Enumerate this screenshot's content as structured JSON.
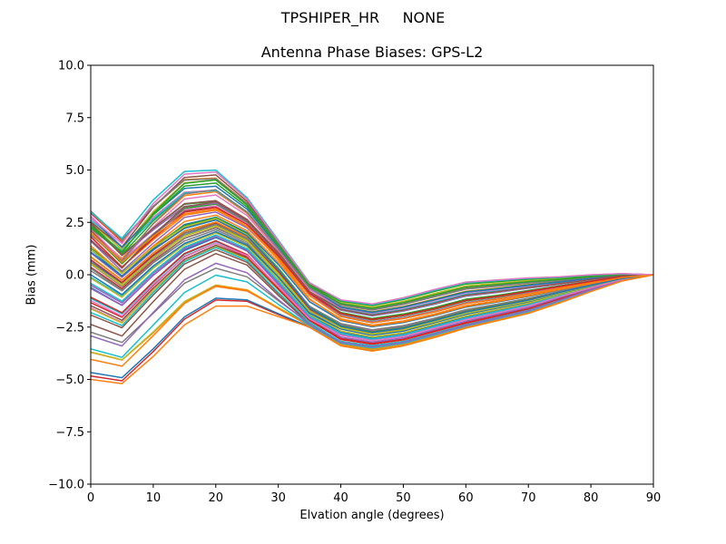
{
  "figure": {
    "suptitle": "TPSHIPER_HR     NONE",
    "title": "Antenna Phase Biases: GPS-L2",
    "xlabel": "Elvation angle (degrees)",
    "ylabel": "Bias (mm)"
  },
  "chart_data": {
    "type": "line",
    "title": "Antenna Phase Biases: GPS-L2",
    "suptitle": "TPSHIPER_HR     NONE",
    "xlabel": "Elvation angle (degrees)",
    "ylabel": "Bias (mm)",
    "xlim": [
      0,
      90
    ],
    "ylim": [
      -10,
      10
    ],
    "xticks": [
      0,
      10,
      20,
      30,
      40,
      50,
      60,
      70,
      80,
      90
    ],
    "yticks": [
      -10.0,
      -7.5,
      -5.0,
      -2.5,
      0.0,
      2.5,
      5.0,
      7.5,
      10.0
    ],
    "ytick_labels": [
      "−10.0",
      "−7.5",
      "−5.0",
      "−2.5",
      "0.0",
      "2.5",
      "5.0",
      "7.5",
      "10.0"
    ],
    "grid": false,
    "legend": false,
    "x": [
      0,
      5,
      10,
      15,
      20,
      25,
      30,
      35,
      40,
      45,
      50,
      55,
      60,
      65,
      70,
      75,
      80,
      85,
      90
    ],
    "series_count": 72,
    "color_cycle": [
      "#1f77b4",
      "#ff7f0e",
      "#2ca02c",
      "#d62728",
      "#9467bd",
      "#8c564b",
      "#e377c2",
      "#7f7f7f",
      "#bcbd22",
      "#17becf"
    ],
    "envelope": {
      "upper": [
        2.7,
        1.5,
        3.4,
        4.8,
        4.9,
        3.6,
        1.6,
        -0.4,
        -1.2,
        -1.4,
        -1.1,
        -0.7,
        -0.35,
        -0.25,
        -0.15,
        -0.1,
        0.0,
        0.05,
        0.0
      ],
      "lower": [
        -5.0,
        -5.2,
        -3.9,
        -2.4,
        -1.5,
        -1.5,
        -2.0,
        -2.5,
        -3.4,
        -3.65,
        -3.4,
        -3.0,
        -2.55,
        -2.2,
        -1.85,
        -1.35,
        -0.8,
        -0.3,
        0.0
      ]
    },
    "representative_series": [
      {
        "name": "top",
        "values": [
          2.7,
          1.5,
          3.4,
          4.8,
          4.9,
          3.6,
          1.6,
          -0.4,
          -1.2,
          -1.4,
          -1.1,
          -0.7,
          -0.35,
          -0.25,
          -0.15,
          -0.1,
          0.0,
          0.05,
          0.0
        ]
      },
      {
        "name": "upper-mid",
        "values": [
          2.0,
          0.5,
          1.8,
          3.0,
          3.2,
          2.4,
          0.9,
          -0.9,
          -1.9,
          -2.2,
          -2.0,
          -1.7,
          -1.3,
          -1.1,
          -0.85,
          -0.6,
          -0.35,
          -0.1,
          0.0
        ]
      },
      {
        "name": "mid",
        "values": [
          0.5,
          -0.5,
          0.8,
          1.8,
          2.3,
          1.6,
          0.0,
          -1.8,
          -2.6,
          -2.9,
          -2.7,
          -2.3,
          -1.9,
          -1.6,
          -1.3,
          -0.9,
          -0.55,
          -0.2,
          0.0
        ]
      },
      {
        "name": "lower-mid",
        "values": [
          -2.0,
          -2.6,
          -1.0,
          0.5,
          1.2,
          0.6,
          -0.9,
          -2.3,
          -3.2,
          -3.4,
          -3.2,
          -2.8,
          -2.4,
          -2.05,
          -1.7,
          -1.2,
          -0.7,
          -0.25,
          0.0
        ]
      },
      {
        "name": "bottom",
        "values": [
          -5.0,
          -5.2,
          -3.9,
          -2.4,
          -1.5,
          -1.5,
          -2.0,
          -2.5,
          -3.4,
          -3.65,
          -3.4,
          -3.0,
          -2.55,
          -2.2,
          -1.85,
          -1.35,
          -0.8,
          -0.3,
          0.0
        ]
      }
    ]
  }
}
